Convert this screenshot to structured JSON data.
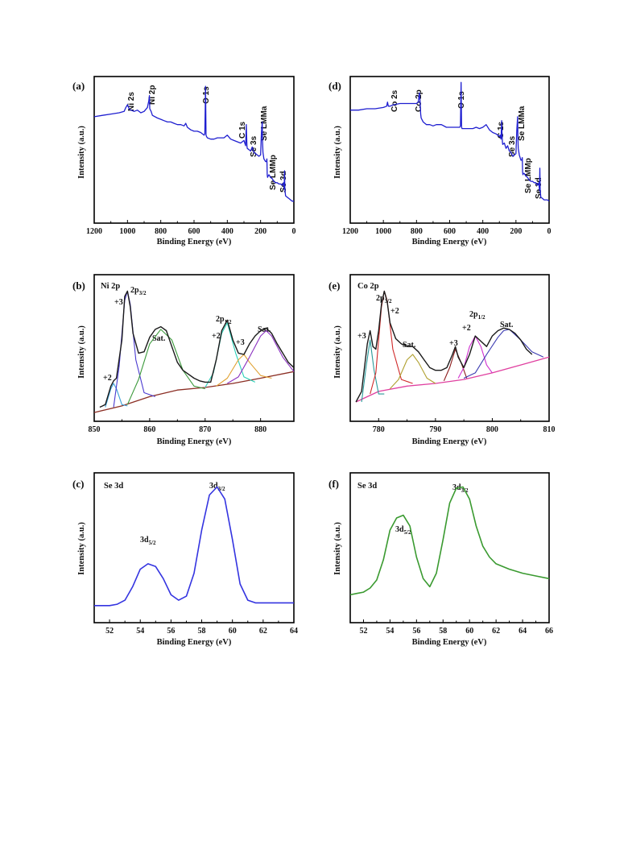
{
  "colors": {
    "survey": "#1f1fd0",
    "se3d_c": "#3434e0",
    "se3d_f": "#3a9a30",
    "envelope": "#1a1a1a",
    "background_ni": "#8b2e24",
    "background_co": "#e040a0",
    "ni_p2": "#3aa0d8",
    "ni_p3": "#4a3ad0",
    "ni_sat1": "#3c9a3c",
    "ni_p2b": "#2ad0b8",
    "ni_p3b": "#e0a030",
    "ni_sat2": "#8a30c0",
    "co_p3": "#2a9a9a",
    "co_p2": "#d02a2a",
    "co_sat1": "#b0a030",
    "co_p3b": "#8b1a1a",
    "co_p2b": "#d030d0",
    "co_sat2": "#3a3ab0"
  },
  "chart_data": [
    {
      "panel": "(a)",
      "type": "line",
      "xlabel": "Binding Energy (eV)",
      "ylabel": "Intensity (a.u.)",
      "xlim": [
        1200,
        0
      ],
      "ylim": [
        0,
        100
      ],
      "xticks": [
        "1200",
        "1000",
        "800",
        "600",
        "400",
        "200",
        "0"
      ],
      "series": [
        {
          "x": [
            1200,
            1150,
            1100,
            1050,
            1020,
            1010,
            1000,
            990,
            980,
            960,
            940,
            920,
            900,
            880,
            872,
            868,
            866,
            862,
            858,
            850,
            820,
            800,
            780,
            760,
            740,
            720,
            700,
            680,
            660,
            650,
            640,
            620,
            600,
            580,
            560,
            540,
            535,
            532,
            531,
            528,
            525,
            520,
            500,
            480,
            460,
            440,
            420,
            400,
            380,
            360,
            340,
            320,
            300,
            295,
            290,
            286,
            284,
            282,
            280,
            270,
            260,
            250,
            240,
            230,
            220,
            210,
            200,
            195,
            190,
            188,
            186,
            180,
            170,
            165,
            162,
            160,
            158,
            155,
            150,
            140,
            130,
            120,
            110,
            100,
            90,
            80,
            70,
            62,
            58,
            56,
            54,
            50,
            40,
            30,
            20,
            10,
            0
          ],
          "y": [
            74,
            75,
            76,
            77,
            78,
            81,
            83,
            80,
            79,
            78,
            79,
            77,
            78,
            81,
            86,
            90,
            80,
            79,
            78,
            75,
            73,
            72,
            71,
            70,
            70,
            69,
            68,
            68,
            67,
            69,
            66,
            64,
            63,
            63,
            62,
            60,
            61,
            88,
            97,
            60,
            59,
            58,
            57,
            57,
            58,
            58,
            58,
            60,
            57,
            56,
            55,
            54,
            56,
            54,
            52,
            68,
            60,
            52,
            50,
            49,
            48,
            51,
            47,
            46,
            45,
            44,
            45,
            62,
            70,
            55,
            47,
            42,
            40,
            40,
            42,
            30,
            28,
            29,
            30,
            28,
            27,
            25,
            24,
            24,
            23,
            23,
            22,
            24,
            19,
            33,
            19,
            14,
            13,
            12,
            11,
            10,
            10
          ]
        }
      ],
      "annotations": [
        "Ni 2s",
        "Ni 2p",
        "O 1s",
        "C 1s",
        "Se 3s",
        "Se LMMa",
        "Se LMMp",
        "Se 3d"
      ]
    },
    {
      "panel": "(b)",
      "type": "line",
      "title": "Ni 2p",
      "xlabel": "Binding Energy (eV)",
      "ylabel": "Intensity (a.u.)",
      "xlim": [
        850,
        886
      ],
      "ylim": [
        0,
        100
      ],
      "xticks": [
        "850",
        "860",
        "870",
        "880"
      ],
      "series": [
        {
          "role": "envelope",
          "x": [
            851,
            852,
            853,
            853.5,
            854,
            855,
            855.5,
            856,
            856.5,
            857,
            858,
            859,
            860,
            861,
            862,
            863,
            864,
            865,
            866,
            867,
            868,
            869,
            870,
            871,
            872,
            873,
            874,
            875,
            876,
            877,
            878,
            879,
            880,
            881,
            882,
            883,
            884,
            885,
            886
          ],
          "y": [
            4,
            6,
            20,
            24,
            26,
            55,
            88,
            92,
            80,
            60,
            45,
            46,
            57,
            63,
            65,
            62,
            50,
            38,
            32,
            29,
            26,
            24,
            23,
            23,
            40,
            62,
            70,
            55,
            45,
            44,
            52,
            58,
            62,
            64,
            60,
            52,
            45,
            38,
            34
          ]
        },
        {
          "role": "background",
          "x": [
            850,
            855,
            860,
            865,
            870,
            875,
            880,
            886
          ],
          "y": [
            0,
            5,
            12,
            17,
            19,
            22,
            26,
            31
          ]
        },
        {
          "role": "+2",
          "x": [
            852,
            853,
            853.5,
            854,
            855,
            856
          ],
          "y": [
            4,
            18,
            22,
            18,
            6,
            5
          ]
        },
        {
          "role": "+3",
          "x": [
            853.5,
            854.5,
            855.5,
            856,
            856.5,
            857.5,
            859,
            861
          ],
          "y": [
            4,
            35,
            85,
            92,
            82,
            40,
            15,
            12
          ]
        },
        {
          "role": "Sat.",
          "x": [
            856,
            858,
            860,
            862,
            864,
            866,
            868,
            870
          ],
          "y": [
            6,
            25,
            52,
            63,
            55,
            32,
            20,
            18
          ]
        },
        {
          "role": "+2",
          "x": [
            870,
            871.5,
            873,
            874,
            875.5,
            877,
            879
          ],
          "y": [
            19,
            30,
            60,
            68,
            45,
            27,
            23
          ]
        },
        {
          "role": "+3",
          "x": [
            872,
            874,
            876,
            877,
            878,
            880,
            882
          ],
          "y": [
            20,
            26,
            40,
            44,
            38,
            28,
            26
          ]
        },
        {
          "role": "Sat.",
          "x": [
            874,
            876,
            878,
            880,
            881,
            882,
            884,
            886
          ],
          "y": [
            22,
            27,
            42,
            58,
            62,
            58,
            42,
            31
          ]
        }
      ],
      "annotations": [
        "2p",
        "3/2",
        "+3",
        "+2",
        "Sat.",
        "2p",
        "1/2",
        "+2",
        "+3",
        "Sat."
      ]
    },
    {
      "panel": "(c)",
      "type": "line",
      "title": "Se 3d",
      "xlabel": "Binding Energy (eV)",
      "ylabel": "Intensity (a.u.)",
      "xlim": [
        51,
        64
      ],
      "ylim": [
        0,
        100
      ],
      "xticks": [
        "52",
        "54",
        "56",
        "58",
        "60",
        "62",
        "64"
      ],
      "series": [
        {
          "x": [
            51,
            52,
            52.5,
            53,
            53.5,
            54,
            54.5,
            55,
            55.5,
            56,
            56.5,
            57,
            57.5,
            58,
            58.5,
            59,
            59.5,
            60,
            60.5,
            61,
            61.5,
            62,
            63,
            64
          ],
          "y": [
            6,
            6,
            7,
            10,
            20,
            33,
            37,
            35,
            26,
            14,
            10,
            13,
            30,
            62,
            88,
            94,
            85,
            55,
            22,
            10,
            8,
            8,
            8,
            8
          ]
        }
      ],
      "annotations": [
        "3d",
        "5/2",
        "3d",
        "3/2"
      ]
    },
    {
      "panel": "(d)",
      "type": "line",
      "xlabel": "Binding Energy (eV)",
      "ylabel": "Intensity (a.u.)",
      "xlim": [
        1200,
        0
      ],
      "ylim": [
        0,
        100
      ],
      "xticks": [
        "1200",
        "1000",
        "800",
        "600",
        "400",
        "200",
        "0"
      ],
      "series": [
        {
          "x": [
            1200,
            1150,
            1100,
            1050,
            1000,
            980,
            975,
            970,
            960,
            940,
            900,
            860,
            820,
            800,
            790,
            782,
            778,
            775,
            772,
            768,
            760,
            740,
            720,
            700,
            680,
            650,
            620,
            600,
            580,
            560,
            540,
            535,
            532,
            531,
            528,
            525,
            500,
            480,
            460,
            440,
            420,
            400,
            380,
            360,
            340,
            320,
            300,
            295,
            290,
            286,
            284,
            282,
            280,
            270,
            260,
            250,
            240,
            230,
            220,
            210,
            200,
            195,
            190,
            188,
            186,
            180,
            170,
            165,
            162,
            160,
            158,
            155,
            150,
            140,
            130,
            120,
            110,
            100,
            90,
            80,
            70,
            62,
            58,
            56,
            54,
            50,
            40,
            30,
            20,
            10,
            0
          ],
          "y": [
            79,
            79,
            80,
            80,
            81,
            82,
            85,
            82,
            82,
            83,
            84,
            84,
            84,
            84,
            85,
            92,
            84,
            76,
            73,
            72,
            70,
            68,
            68,
            67,
            68,
            68,
            66,
            66,
            66,
            66,
            66,
            67,
            92,
            100,
            66,
            65,
            65,
            65,
            65,
            66,
            65,
            66,
            68,
            64,
            62,
            61,
            59,
            60,
            57,
            71,
            62,
            55,
            53,
            54,
            50,
            52,
            48,
            47,
            44,
            45,
            46,
            64,
            74,
            57,
            50,
            45,
            41,
            41,
            43,
            32,
            30,
            31,
            31,
            29,
            28,
            26,
            25,
            25,
            24,
            24,
            22,
            24,
            18,
            35,
            19,
            13,
            12,
            11,
            11,
            11,
            10
          ]
        }
      ],
      "annotations": [
        "Co 2s",
        "Co 2p",
        "O 1s",
        "C 1s",
        "Se 3s",
        "Se LMMa",
        "Se LMMp",
        "Se 3d"
      ]
    },
    {
      "panel": "(e)",
      "type": "line",
      "title": "Co 2p",
      "xlabel": "Binding Energy (eV)",
      "ylabel": "Intensity (a.u.)",
      "xlim": [
        775,
        810
      ],
      "ylim": [
        0,
        100
      ],
      "xticks": [
        "780",
        "790",
        "800",
        "810"
      ],
      "series": [
        {
          "role": "envelope",
          "x": [
            776,
            777,
            778,
            778.5,
            779,
            779.5,
            780,
            780.5,
            781,
            781.5,
            782,
            783,
            784,
            785,
            786,
            787,
            788,
            789,
            790,
            791,
            792,
            793,
            793.5,
            794,
            795,
            796,
            797,
            798,
            799,
            800,
            801,
            802,
            803,
            804,
            805,
            806,
            807
          ],
          "y": [
            8,
            16,
            52,
            62,
            50,
            48,
            62,
            82,
            92,
            84,
            68,
            56,
            52,
            50,
            50,
            46,
            40,
            34,
            32,
            32,
            34,
            44,
            50,
            42,
            34,
            44,
            58,
            54,
            50,
            58,
            62,
            64,
            63,
            60,
            55,
            48,
            44
          ]
        },
        {
          "role": "background",
          "x": [
            776,
            780,
            785,
            790,
            795,
            800,
            805,
            810
          ],
          "y": [
            8,
            16,
            20,
            22,
            25,
            30,
            36,
            42
          ]
        },
        {
          "role": "+3",
          "x": [
            777,
            777.8,
            778.5,
            779.2,
            780,
            781
          ],
          "y": [
            8,
            35,
            55,
            32,
            14,
            14
          ]
        },
        {
          "role": "+2",
          "x": [
            778.5,
            779.5,
            780.5,
            781,
            781.5,
            782.5,
            784,
            786
          ],
          "y": [
            14,
            30,
            80,
            92,
            85,
            48,
            25,
            22
          ]
        },
        {
          "role": "Sat.",
          "x": [
            782,
            783.5,
            785,
            786,
            787,
            788.5,
            790
          ],
          "y": [
            18,
            25,
            40,
            44,
            38,
            26,
            22
          ]
        },
        {
          "role": "+3",
          "x": [
            791.5,
            792.5,
            793.5,
            794.5,
            795.5
          ],
          "y": [
            24,
            34,
            48,
            38,
            26
          ]
        },
        {
          "role": "+2",
          "x": [
            794,
            795,
            796,
            797,
            798,
            799,
            800
          ],
          "y": [
            26,
            34,
            50,
            58,
            50,
            36,
            30
          ]
        },
        {
          "role": "Sat.",
          "x": [
            795,
            797,
            799,
            801,
            802,
            803,
            805,
            807,
            809
          ],
          "y": [
            26,
            30,
            44,
            57,
            62,
            63,
            55,
            46,
            42
          ]
        }
      ],
      "annotations": [
        "2p",
        "3/2",
        "+2",
        "+3",
        "Sat.",
        "+3",
        "+2",
        "2p",
        "1/2",
        "Sat."
      ]
    },
    {
      "panel": "(f)",
      "type": "line",
      "title": "Se 3d",
      "xlabel": "Binding Energy (eV)",
      "ylabel": "Intensity (a.u.)",
      "xlim": [
        51,
        66
      ],
      "ylim": [
        0,
        100
      ],
      "xticks": [
        "52",
        "54",
        "56",
        "58",
        "60",
        "62",
        "64",
        "66"
      ],
      "series": [
        {
          "x": [
            51,
            51.5,
            52,
            52.5,
            53,
            53.5,
            54,
            54.5,
            55,
            55.5,
            56,
            56.5,
            57,
            57.5,
            58,
            58.5,
            59,
            59.5,
            60,
            60.5,
            61,
            61.5,
            62,
            63,
            64,
            65,
            66
          ],
          "y": [
            14,
            15,
            16,
            19,
            25,
            40,
            62,
            71,
            73,
            65,
            42,
            26,
            20,
            30,
            55,
            82,
            93,
            94,
            85,
            65,
            50,
            42,
            37,
            33,
            30,
            28,
            26
          ]
        }
      ],
      "annotations": [
        "3d",
        "5/2",
        "3d",
        "3/2"
      ]
    }
  ]
}
